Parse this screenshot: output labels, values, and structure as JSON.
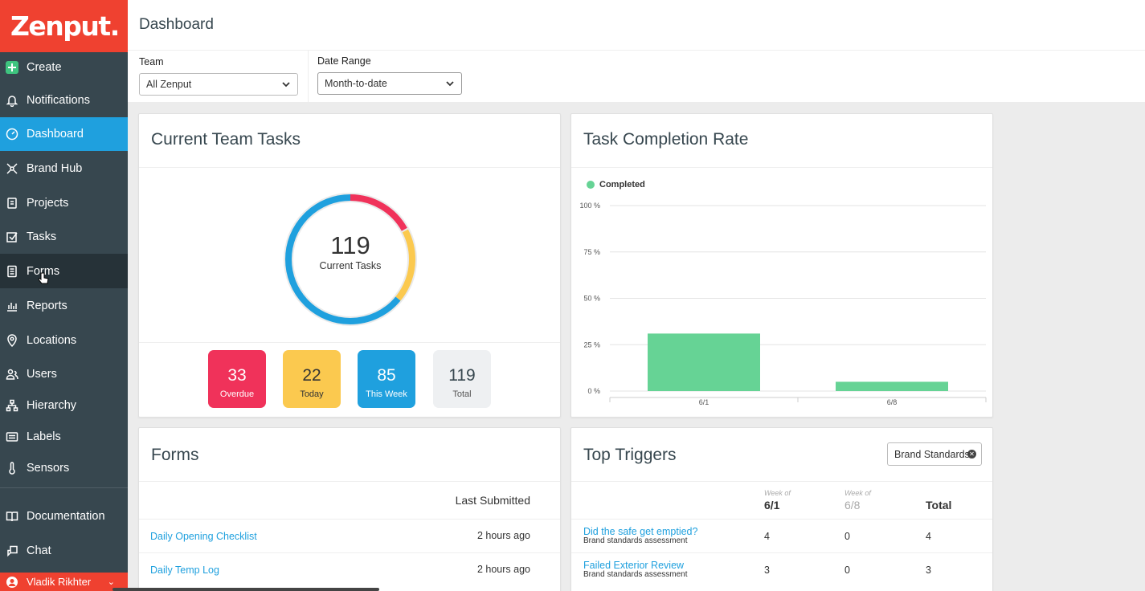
{
  "app": {
    "logo": "Zenput."
  },
  "sidebar": {
    "items": [
      {
        "label": "Create",
        "icon": "plus-square-icon"
      },
      {
        "label": "Notifications",
        "icon": "bell-icon"
      },
      {
        "label": "Dashboard",
        "icon": "dashboard-icon"
      },
      {
        "label": "Brand Hub",
        "icon": "hub-icon"
      },
      {
        "label": "Projects",
        "icon": "projects-icon"
      },
      {
        "label": "Tasks",
        "icon": "checkbox-icon"
      },
      {
        "label": "Forms",
        "icon": "document-icon"
      },
      {
        "label": "Reports",
        "icon": "reports-icon"
      },
      {
        "label": "Locations",
        "icon": "map-pin-icon"
      },
      {
        "label": "Users",
        "icon": "users-icon"
      },
      {
        "label": "Hierarchy",
        "icon": "hierarchy-icon"
      },
      {
        "label": "Labels",
        "icon": "labels-icon"
      },
      {
        "label": "Sensors",
        "icon": "thermometer-icon"
      },
      {
        "label": "Documentation",
        "icon": "book-icon"
      },
      {
        "label": "Chat",
        "icon": "chat-icon"
      }
    ],
    "user": "Vladik Rikhter"
  },
  "header": {
    "title": "Dashboard"
  },
  "filters": {
    "team_label": "Team",
    "team_value": "All Zenput",
    "date_label": "Date Range",
    "date_value": "Month-to-date"
  },
  "current_tasks": {
    "title": "Current Team Tasks",
    "total": "119",
    "center_label": "Current Tasks",
    "stats": [
      {
        "value": "33",
        "label": "Overdue",
        "color": "#f0325a"
      },
      {
        "value": "22",
        "label": "Today",
        "color": "#fbc94f"
      },
      {
        "value": "85",
        "label": "This Week",
        "color": "#1fa0de"
      },
      {
        "value": "119",
        "label": "Total",
        "color": "#eef0f2"
      }
    ]
  },
  "completion": {
    "title": "Task Completion Rate",
    "legend": "Completed"
  },
  "chart_data": {
    "type": "bar",
    "categories": [
      "6/1",
      "6/8"
    ],
    "series": [
      {
        "name": "Completed",
        "values": [
          31,
          5
        ],
        "color": "#66d395"
      }
    ],
    "yticks": [
      "0 %",
      "25 %",
      "50 %",
      "75 %",
      "100 %"
    ],
    "ylim": [
      0,
      100
    ],
    "grid": true,
    "legend": "top-left"
  },
  "forms": {
    "title": "Forms",
    "col_header": "Last Submitted",
    "rows": [
      {
        "name": "Daily Opening Checklist",
        "time": "2 hours ago"
      },
      {
        "name": "Daily Temp Log",
        "time": "2 hours ago"
      }
    ]
  },
  "triggers": {
    "title": "Top Triggers",
    "filter": "Brand Standards",
    "week_of": "Week of",
    "cols": [
      "6/1",
      "6/8",
      "Total"
    ],
    "rows": [
      {
        "title": "Did the safe get emptied?",
        "sub": "Brand standards assessment",
        "w1": "4",
        "w2": "0",
        "total": "4"
      },
      {
        "title": "Failed Exterior Review",
        "sub": "Brand standards assessment",
        "w1": "3",
        "w2": "0",
        "total": "3"
      }
    ]
  }
}
